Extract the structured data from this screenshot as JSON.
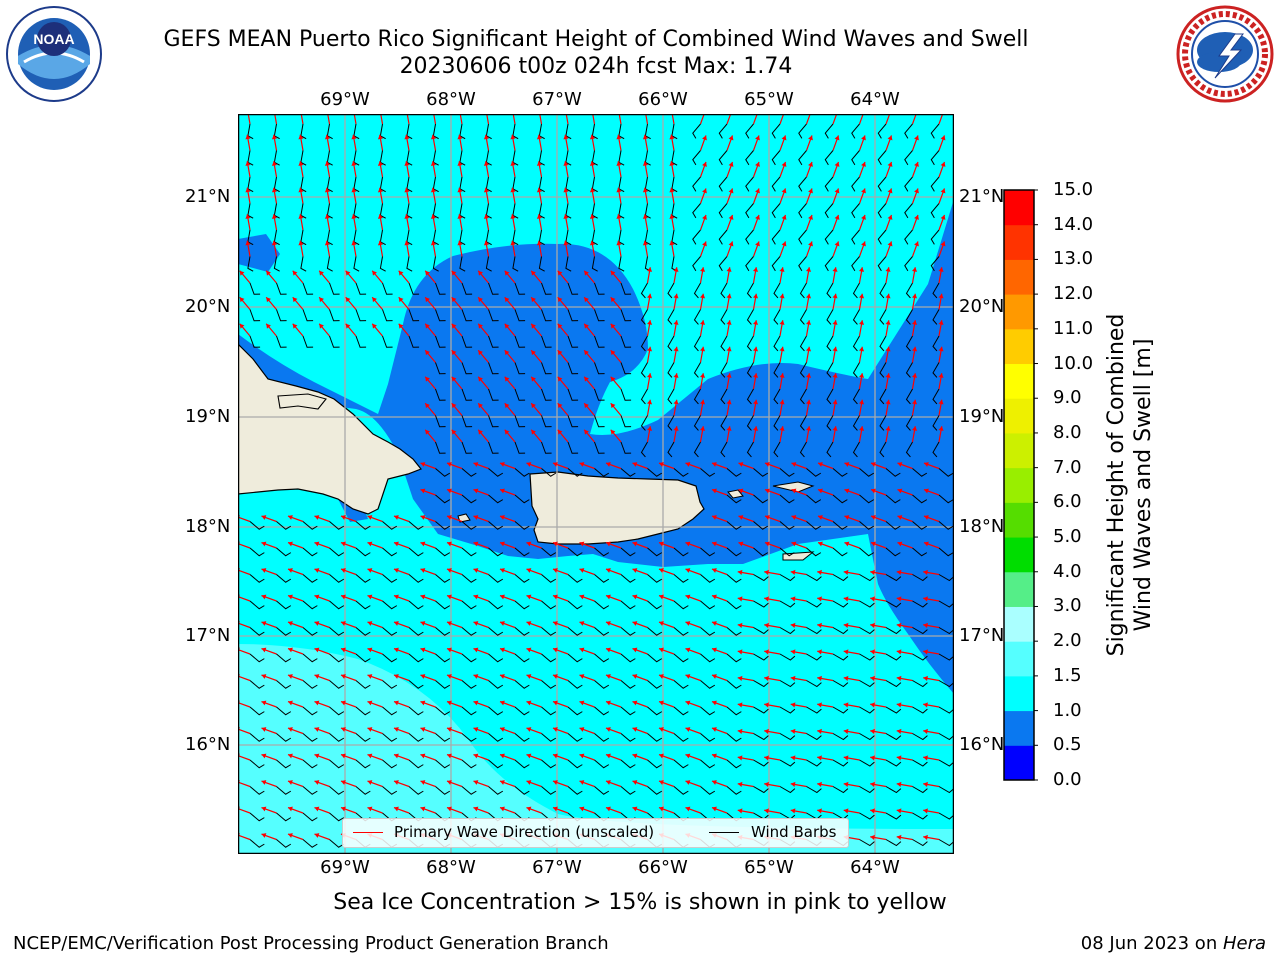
{
  "title": {
    "line1": "GEFS MEAN Puerto Rico Significant Height of Combined Wind Waves and Swell",
    "line2": "20230606 t00z 024h fcst   Max: 1.74"
  },
  "logos": {
    "noaa": {
      "icon": "noaa-logo",
      "text": "NOAA",
      "ring_text": "NATIONAL OCEANIC AND ATMOSPHERIC ADMINISTRATION · U.S. DEPARTMENT OF COMMERCE"
    },
    "nws": {
      "icon": "nws-logo",
      "ring_text": "NATIONAL WEATHER SERVICE"
    }
  },
  "map": {
    "lon_labels": [
      "69°W",
      "68°W",
      "67°W",
      "66°W",
      "65°W",
      "64°W"
    ],
    "lat_labels": [
      "21°N",
      "20°N",
      "19°N",
      "18°N",
      "17°N",
      "16°N"
    ],
    "lon_range": [
      -70.0,
      -63.25
    ],
    "lat_range": [
      15.0,
      21.75
    ],
    "gridlines": true,
    "land_color": "#efecdc",
    "ocean_field": "significant wave height [m]",
    "vector_overlays": [
      "Primary Wave Direction (unscaled)",
      "Wind Barbs"
    ]
  },
  "legend": {
    "placement": "bottom-center",
    "items": [
      {
        "label": "Primary Wave Direction (unscaled)",
        "color": "#ff0000"
      },
      {
        "label": "Wind Barbs",
        "color": "#000000"
      }
    ]
  },
  "colorbar": {
    "label_line1": "Significant Height of Combined",
    "label_line2": "Wind Waves and Swell [m]",
    "ticks": [
      "0.0",
      "0.5",
      "1.0",
      "1.5",
      "2.0",
      "3.0",
      "4.0",
      "5.0",
      "6.0",
      "7.0",
      "8.0",
      "9.0",
      "10.0",
      "11.0",
      "12.0",
      "13.0",
      "14.0",
      "15.0"
    ],
    "colors": [
      "#0000ff",
      "#0a78f0",
      "#00ffff",
      "#55ffff",
      "#aaffff",
      "#55ee88",
      "#00dd00",
      "#55dd00",
      "#99ee00",
      "#ccf000",
      "#eef000",
      "#ffff00",
      "#ffcc00",
      "#ff9900",
      "#ff6600",
      "#ff3300",
      "#ff0000"
    ]
  },
  "note": "Sea Ice Concentration > 15% is shown in pink to yellow",
  "footer": {
    "left": "NCEP/EMC/Verification Post Processing Product Generation Branch",
    "right_prefix": "08 Jun 2023 on ",
    "right_host": "Hera"
  }
}
